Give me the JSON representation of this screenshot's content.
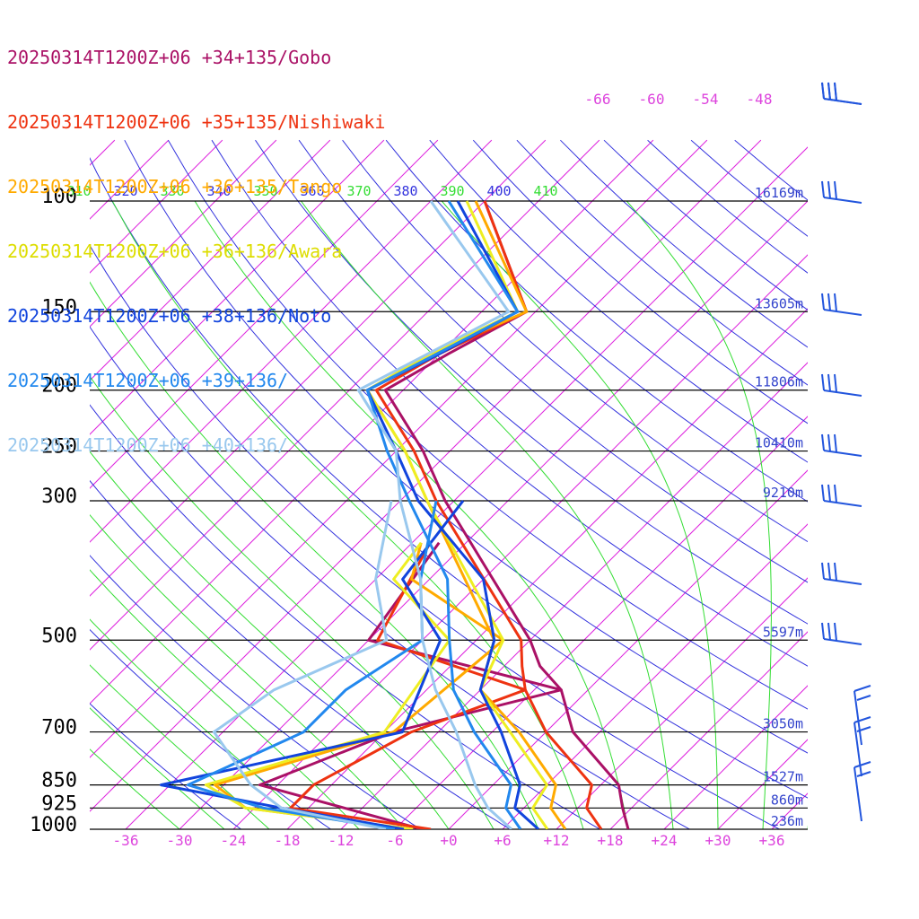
{
  "chart_data": {
    "type": "line",
    "subtype": "skew-t log-p aerological diagram",
    "pressure_levels": [
      100,
      150,
      200,
      250,
      300,
      500,
      700,
      850,
      925,
      1000
    ],
    "heights": [
      {
        "p": 100,
        "label": "16169m"
      },
      {
        "p": 150,
        "label": "13605m"
      },
      {
        "p": 200,
        "label": "11806m"
      },
      {
        "p": 250,
        "label": "10410m"
      },
      {
        "p": 300,
        "label": "9210m"
      },
      {
        "p": 500,
        "label": "5597m"
      },
      {
        "p": 700,
        "label": "3050m"
      },
      {
        "p": 850,
        "label": "1527m"
      },
      {
        "p": 925,
        "label": "860m"
      },
      {
        "p": 1000,
        "label": "236m"
      }
    ],
    "temperature_ticks": [
      "-36",
      "-30",
      "-24",
      "-18",
      "-12",
      "-6",
      "+0",
      "+6",
      "+12",
      "+18",
      "+24",
      "+30",
      "+36"
    ],
    "temperature_tick_values": [
      -36,
      -30,
      -24,
      -18,
      -12,
      -6,
      0,
      6,
      12,
      18,
      24,
      30,
      36
    ],
    "upper_isotherm_labels": [
      "-66",
      "-60",
      "-54",
      "-48"
    ],
    "theta_labels": [
      "310",
      "320",
      "330",
      "340",
      "350",
      "360",
      "370",
      "380",
      "390",
      "400",
      "410"
    ],
    "colors": {
      "isotherm": "#dd22dd",
      "theta": "#3333dd",
      "theta_e": "#33dd33",
      "isobar": "#000000",
      "height_label": "#3344cc",
      "temp_tick": "#dd44dd",
      "pressure_label": "#000000",
      "barb": "#2255dd"
    },
    "series": [
      {
        "name": "20250314T1200Z+06 +34+135/Gobo",
        "color": "#aa1166",
        "temp": [
          [
            100,
            -66
          ],
          [
            150,
            -49
          ],
          [
            175,
            -53
          ],
          [
            200,
            -56
          ],
          [
            250,
            -45
          ],
          [
            300,
            -37
          ],
          [
            500,
            -12
          ],
          [
            550,
            -8
          ],
          [
            600,
            -3
          ],
          [
            700,
            3
          ],
          [
            850,
            14
          ],
          [
            925,
            17
          ],
          [
            1000,
            20
          ]
        ],
        "dew": [
          [
            350,
            -33
          ],
          [
            500,
            -30
          ],
          [
            600,
            -3
          ],
          [
            700,
            -17
          ],
          [
            850,
            -26
          ],
          [
            925,
            -14
          ],
          [
            1000,
            -3
          ]
        ]
      },
      {
        "name": "20250314T1200Z+06 +35+135/Nishiwaki",
        "color": "#ee3311",
        "temp": [
          [
            100,
            -66
          ],
          [
            150,
            -49
          ],
          [
            175,
            -54
          ],
          [
            200,
            -57
          ],
          [
            250,
            -46
          ],
          [
            300,
            -38
          ],
          [
            500,
            -13
          ],
          [
            550,
            -10
          ],
          [
            600,
            -7
          ],
          [
            700,
            0
          ],
          [
            850,
            11
          ],
          [
            925,
            13
          ],
          [
            1000,
            17
          ]
        ],
        "dew": [
          [
            350,
            -34
          ],
          [
            500,
            -29
          ],
          [
            600,
            -7
          ],
          [
            700,
            -15
          ],
          [
            850,
            -20
          ],
          [
            925,
            -20
          ],
          [
            1000,
            -2
          ]
        ]
      },
      {
        "name": "20250314T1200Z+06 +36+135/Tango",
        "color": "#ffaa00",
        "temp": [
          [
            100,
            -67
          ],
          [
            150,
            -49
          ],
          [
            175,
            -55
          ],
          [
            200,
            -58
          ],
          [
            250,
            -47
          ],
          [
            300,
            -39
          ],
          [
            500,
            -16
          ],
          [
            600,
            -12
          ],
          [
            700,
            -3
          ],
          [
            850,
            7
          ],
          [
            925,
            9
          ],
          [
            1000,
            13
          ]
        ],
        "dew": [
          [
            350,
            -35
          ],
          [
            400,
            -32
          ],
          [
            500,
            -15
          ],
          [
            700,
            -17
          ],
          [
            850,
            -31
          ],
          [
            925,
            -25
          ],
          [
            1000,
            -4
          ]
        ]
      },
      {
        "name": "20250314T1200Z+06 +36+136/Awara",
        "color": "#eeee22",
        "temp": [
          [
            100,
            -68
          ],
          [
            150,
            -50
          ],
          [
            175,
            -55
          ],
          [
            200,
            -58
          ],
          [
            250,
            -47
          ],
          [
            300,
            -39
          ],
          [
            500,
            -15
          ],
          [
            600,
            -12
          ],
          [
            700,
            -4
          ],
          [
            850,
            6
          ],
          [
            925,
            7
          ],
          [
            1000,
            11
          ]
        ],
        "dew": [
          [
            350,
            -35
          ],
          [
            400,
            -34
          ],
          [
            500,
            -21
          ],
          [
            700,
            -18
          ],
          [
            850,
            -32
          ],
          [
            925,
            -25
          ],
          [
            1000,
            -4
          ]
        ]
      },
      {
        "name": "20250314T1200Z+06 +38+136/Noto",
        "color": "#1144dd",
        "temp": [
          [
            100,
            -69
          ],
          [
            150,
            -50
          ],
          [
            175,
            -54
          ],
          [
            200,
            -58
          ],
          [
            250,
            -48
          ],
          [
            300,
            -40
          ],
          [
            400,
            -24
          ],
          [
            500,
            -16
          ],
          [
            600,
            -12
          ],
          [
            700,
            -5
          ],
          [
            850,
            3
          ],
          [
            925,
            5
          ],
          [
            1000,
            10
          ]
        ],
        "dew": [
          [
            300,
            -35
          ],
          [
            400,
            -33
          ],
          [
            500,
            -22
          ],
          [
            700,
            -16
          ],
          [
            850,
            -37
          ],
          [
            925,
            -21
          ],
          [
            1000,
            -5
          ]
        ]
      },
      {
        "name": "20250314T1200Z+06 +39+136/",
        "color": "#2288ee",
        "temp": [
          [
            100,
            -70
          ],
          [
            150,
            -50
          ],
          [
            200,
            -58
          ],
          [
            250,
            -49
          ],
          [
            300,
            -41
          ],
          [
            400,
            -28
          ],
          [
            500,
            -21
          ],
          [
            600,
            -15
          ],
          [
            700,
            -8
          ],
          [
            850,
            2
          ],
          [
            925,
            4
          ],
          [
            1000,
            8
          ]
        ],
        "dew": [
          [
            300,
            -38
          ],
          [
            400,
            -31
          ],
          [
            500,
            -24
          ],
          [
            600,
            -27
          ],
          [
            700,
            -27
          ],
          [
            850,
            -34
          ],
          [
            925,
            -23
          ],
          [
            1000,
            -6
          ]
        ]
      },
      {
        "name": "20250314T1200Z+06 +40+136/",
        "color": "#99c8ee",
        "temp": [
          [
            100,
            -72
          ],
          [
            150,
            -51
          ],
          [
            200,
            -59
          ],
          [
            250,
            -48
          ],
          [
            300,
            -42
          ],
          [
            400,
            -31
          ],
          [
            500,
            -24
          ],
          [
            600,
            -17
          ],
          [
            700,
            -10
          ],
          [
            850,
            -2
          ],
          [
            925,
            2
          ],
          [
            1000,
            7
          ]
        ],
        "dew": [
          [
            300,
            -43
          ],
          [
            400,
            -36
          ],
          [
            500,
            -28
          ],
          [
            600,
            -35
          ],
          [
            700,
            -37
          ],
          [
            850,
            -27
          ],
          [
            925,
            -21
          ],
          [
            1000,
            -7
          ]
        ]
      }
    ],
    "wind_barbs_count": 12,
    "xlim": [
      -40,
      40
    ],
    "ylim": [
      1000,
      100
    ],
    "grid": true,
    "legend_position": "top-left"
  }
}
